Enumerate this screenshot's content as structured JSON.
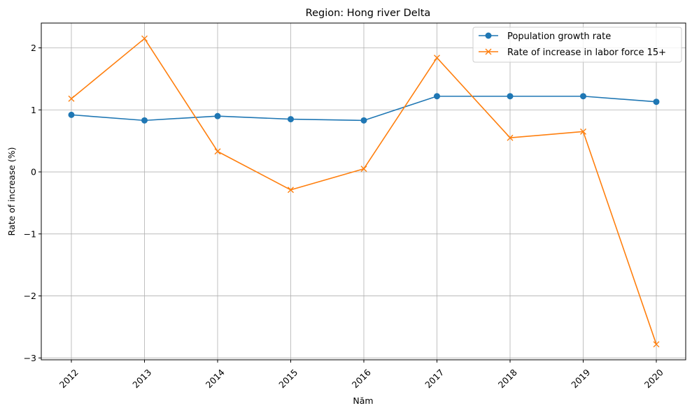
{
  "chart_data": {
    "type": "line",
    "title": "Region: Hong river Delta",
    "xlabel": "Năm",
    "ylabel": "Rate of increase (%)",
    "x": [
      "2012",
      "2013",
      "2014",
      "2015",
      "2016",
      "2017",
      "2018",
      "2019",
      "2020"
    ],
    "yticks": [
      "2",
      "1",
      "0",
      "−1",
      "−2",
      "−3"
    ],
    "ylim": [
      -3.03,
      2.4
    ],
    "grid": true,
    "legend_position": "top-right",
    "series": [
      {
        "name": "Population growth rate",
        "marker": "circle",
        "color": "#1f77b4",
        "values": [
          0.92,
          0.83,
          0.9,
          0.85,
          0.83,
          1.22,
          1.22,
          1.22,
          1.13
        ]
      },
      {
        "name": "Rate of increase in labor force 15+",
        "marker": "x",
        "color": "#ff7f0e",
        "values": [
          1.18,
          2.15,
          0.33,
          -0.29,
          0.05,
          1.84,
          0.55,
          0.65,
          -2.78
        ]
      }
    ]
  }
}
